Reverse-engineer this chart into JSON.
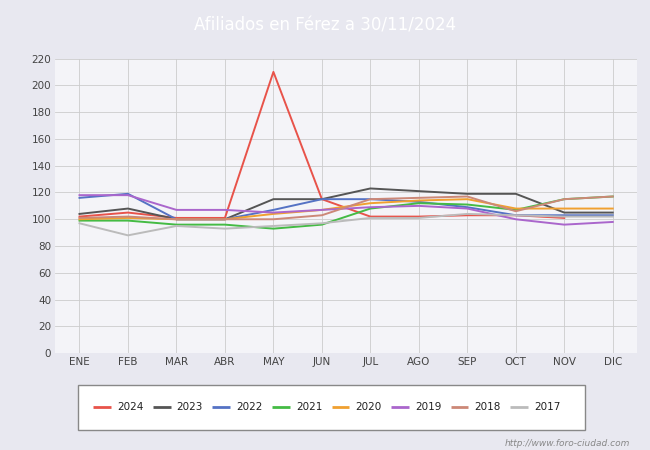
{
  "title": "Afiliados en Férez a 30/11/2024",
  "header_bg": "#4f7fc4",
  "xlabel": "",
  "ylabel": "",
  "ylim": [
    0,
    220
  ],
  "yticks": [
    0,
    20,
    40,
    60,
    80,
    100,
    120,
    140,
    160,
    180,
    200,
    220
  ],
  "months": [
    "ENE",
    "FEB",
    "MAR",
    "ABR",
    "MAY",
    "JUN",
    "JUL",
    "AGO",
    "SEP",
    "OCT",
    "NOV",
    "DIC"
  ],
  "years_order": [
    "2024",
    "2023",
    "2022",
    "2021",
    "2020",
    "2019",
    "2018",
    "2017"
  ],
  "series": {
    "2024": {
      "color": "#e8534a",
      "data": [
        102,
        105,
        101,
        101,
        210,
        115,
        102,
        102,
        103,
        103,
        101,
        null
      ]
    },
    "2023": {
      "color": "#555555",
      "data": [
        104,
        108,
        100,
        100,
        115,
        115,
        123,
        121,
        119,
        119,
        105,
        105
      ]
    },
    "2022": {
      "color": "#5572c4",
      "data": [
        116,
        119,
        100,
        100,
        107,
        115,
        115,
        113,
        109,
        103,
        103,
        103
      ]
    },
    "2021": {
      "color": "#44bb44",
      "data": [
        99,
        99,
        96,
        96,
        93,
        96,
        108,
        112,
        111,
        107,
        115,
        117
      ]
    },
    "2020": {
      "color": "#f0a030",
      "data": [
        100,
        101,
        100,
        100,
        104,
        107,
        112,
        114,
        115,
        108,
        108,
        108
      ]
    },
    "2019": {
      "color": "#aa66cc",
      "data": [
        118,
        118,
        107,
        107,
        105,
        107,
        109,
        110,
        108,
        100,
        96,
        98
      ]
    },
    "2018": {
      "color": "#cc8877",
      "data": [
        101,
        102,
        100,
        100,
        100,
        103,
        115,
        116,
        117,
        106,
        115,
        117
      ]
    },
    "2017": {
      "color": "#bbbbbb",
      "data": [
        97,
        88,
        95,
        93,
        95,
        97,
        101,
        101,
        104,
        103,
        102,
        102
      ]
    }
  },
  "background_color": "#e8e8f0",
  "plot_bg": "#f4f4f8",
  "grid_color": "#cccccc",
  "footer_text": "http://www.foro-ciudad.com"
}
